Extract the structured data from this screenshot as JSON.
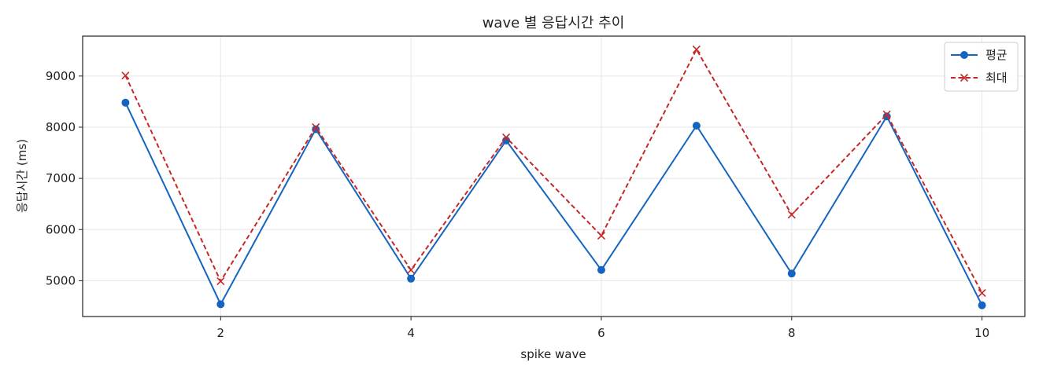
{
  "chart_data": {
    "type": "line",
    "title": "wave 별 응답시간 추이",
    "xlabel": "spike wave",
    "ylabel": "응답시간 (ms)",
    "x": [
      1,
      2,
      3,
      4,
      5,
      6,
      7,
      8,
      9,
      10
    ],
    "xlim": [
      0.55,
      10.45
    ],
    "ylim": [
      4300,
      9780
    ],
    "xticks": [
      2,
      4,
      6,
      8,
      10
    ],
    "yticks": [
      5000,
      6000,
      7000,
      8000,
      9000
    ],
    "grid": true,
    "legend_position": "top-right",
    "series": [
      {
        "name": "평균",
        "color": "#1565c0",
        "line_style": "solid",
        "marker": "circle",
        "values": [
          8480,
          4540,
          7960,
          5040,
          7740,
          5210,
          8030,
          5140,
          8210,
          4520
        ]
      },
      {
        "name": "최대",
        "color": "#c62828",
        "line_style": "dashed",
        "marker": "x",
        "values": [
          9010,
          4990,
          8000,
          5210,
          7800,
          5880,
          9520,
          6290,
          8250,
          4760
        ]
      }
    ]
  }
}
